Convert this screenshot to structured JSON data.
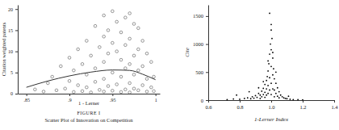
{
  "chart_data": [
    {
      "type": "scatter",
      "title": "FIGURE I",
      "subtitle": "Scatter Plot of Innovation on Competition",
      "x_label": "1 - Lerner",
      "y_label": "Citation weighted patents",
      "xlim": [
        0.84,
        1.005
      ],
      "ylim": [
        0,
        21
      ],
      "xticks": [
        {
          "value": 0.85,
          "label": ".85"
        },
        {
          "value": 0.9,
          "label": ".9"
        },
        {
          "value": 0.95,
          "label": ".95"
        },
        1
      ],
      "yticks": [
        0,
        5,
        10,
        15,
        20
      ],
      "series": [
        {
          "type": "scatter",
          "marker": "open-circle",
          "color": "#555555",
          "x": [
            0.86,
            0.87,
            0.875,
            0.88,
            0.885,
            0.89,
            0.895,
            0.9,
            0.9,
            0.905,
            0.905,
            0.91,
            0.91,
            0.915,
            0.915,
            0.92,
            0.92,
            0.92,
            0.925,
            0.925,
            0.93,
            0.93,
            0.93,
            0.935,
            0.935,
            0.94,
            0.94,
            0.94,
            0.94,
            0.94,
            0.945,
            0.945,
            0.945,
            0.95,
            0.95,
            0.95,
            0.95,
            0.955,
            0.955,
            0.955,
            0.96,
            0.96,
            0.96,
            0.96,
            0.965,
            0.965,
            0.965,
            0.965,
            0.97,
            0.97,
            0.97,
            0.97,
            0.97,
            0.975,
            0.975,
            0.975,
            0.975,
            0.98,
            0.98,
            0.98,
            0.98,
            0.985,
            0.985,
            0.985,
            0.99,
            0.99,
            0.99,
            0.995,
            0.995,
            0.998,
            0.998
          ],
          "values": [
            1.0,
            0.5,
            2.5,
            4.0,
            0.8,
            6.5,
            1.2,
            3.0,
            8.5,
            0.4,
            5.5,
            10.5,
            2.0,
            7.0,
            0.6,
            12.5,
            4.5,
            1.5,
            9.0,
            0.3,
            16.0,
            6.0,
            2.8,
            11.0,
            0.9,
            18.5,
            13.5,
            7.5,
            3.5,
            0.5,
            15.0,
            9.5,
            1.8,
            19.5,
            12.0,
            5.0,
            0.7,
            17.0,
            10.0,
            2.2,
            14.5,
            8.0,
            4.0,
            0.4,
            18.0,
            11.5,
            6.0,
            1.0,
            19.0,
            13.0,
            7.0,
            2.5,
            0.3,
            16.5,
            9.0,
            4.5,
            1.2,
            15.5,
            10.5,
            5.5,
            0.8,
            12.5,
            6.5,
            2.0,
            9.5,
            3.5,
            0.5,
            7.5,
            1.5,
            4.0,
            0.6
          ]
        },
        {
          "type": "line",
          "color": "#333333",
          "x": [
            0.85,
            0.875,
            0.9,
            0.925,
            0.95,
            0.97,
            0.985,
            1.0
          ],
          "values": [
            1.5,
            3.0,
            4.2,
            5.1,
            5.6,
            5.5,
            4.6,
            3.3
          ]
        }
      ]
    },
    {
      "type": "scatter",
      "x_label": "1-Lerner Index",
      "y_label": "Cite",
      "xlim": [
        0.6,
        1.4
      ],
      "ylim": [
        0,
        1700
      ],
      "xticks": [
        0.6,
        0.8,
        {
          "value": 1.0,
          "label": "1.0"
        },
        1.2,
        1.4
      ],
      "yticks": [
        0,
        500,
        1000,
        1500
      ],
      "series": [
        {
          "type": "scatter",
          "marker": "dot",
          "color": "#000000",
          "x": [
            0.72,
            0.76,
            0.8,
            0.83,
            0.85,
            0.87,
            0.88,
            0.89,
            0.9,
            0.91,
            0.92,
            0.93,
            0.93,
            0.94,
            0.94,
            0.95,
            0.95,
            0.96,
            0.96,
            0.96,
            0.97,
            0.97,
            0.97,
            0.975,
            0.98,
            0.98,
            0.98,
            0.985,
            0.99,
            0.99,
            0.99,
            0.995,
            1.0,
            1.0,
            1.0,
            1.0,
            1.0,
            1.005,
            1.01,
            1.01,
            1.01,
            1.015,
            1.02,
            1.02,
            1.02,
            1.03,
            1.03,
            1.04,
            1.04,
            1.05,
            1.05,
            1.06,
            1.07,
            1.08,
            1.09,
            1.1,
            1.12,
            1.14,
            1.17,
            1.2,
            0.78,
            0.86,
            0.92,
            0.99,
            1.0,
            1.03,
            1.11,
            0.95,
            1.01,
            0.98
          ],
          "values": [
            10,
            20,
            15,
            30,
            40,
            25,
            60,
            35,
            80,
            50,
            120,
            90,
            30,
            160,
            60,
            210,
            100,
            280,
            140,
            50,
            350,
            200,
            90,
            420,
            520,
            260,
            120,
            650,
            820,
            400,
            180,
            1000,
            1250,
            900,
            600,
            300,
            100,
            1100,
            750,
            450,
            200,
            560,
            380,
            180,
            60,
            300,
            120,
            220,
            70,
            150,
            40,
            90,
            60,
            40,
            30,
            25,
            15,
            10,
            8,
            5,
            90,
            150,
            220,
            1550,
            1350,
            500,
            70,
            330,
            850,
            700
          ]
        }
      ]
    }
  ]
}
